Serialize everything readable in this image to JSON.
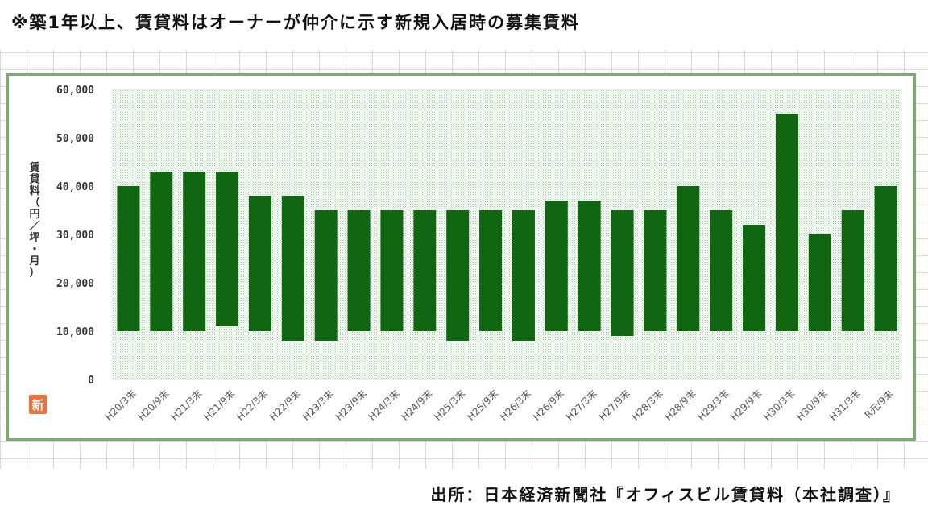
{
  "header": {
    "note": "※築1年以上、賃貸料はオーナーが仲介に示す新規入居時の募集賃料"
  },
  "footer": {
    "source": "出所：日本経済新聞社『オフィスビル賃貸料（本社調査）』"
  },
  "logo": {
    "label": "新"
  },
  "colors": {
    "bar": "#116611",
    "frame": "#7aac72",
    "plot_dots": "#9ac89a"
  },
  "chart_data": {
    "type": "bar",
    "subtype": "floating-range",
    "categories": [
      "H20/3末",
      "H20/9末",
      "H21/3末",
      "H21/9末",
      "H22/3末",
      "H22/9末",
      "H23/3末",
      "H23/9末",
      "H24/3末",
      "H24/9末",
      "H25/3末",
      "H25/9末",
      "H26/3末",
      "H26/9末",
      "H27/3末",
      "H27/9末",
      "H28/3末",
      "H28/9末",
      "H29/3末",
      "H29/9末",
      "H30/3末",
      "H30/9末",
      "H31/3末",
      "R元/9末"
    ],
    "series": [
      {
        "low": [
          10000,
          10000,
          10000,
          11000,
          10000,
          8000,
          8000,
          10000,
          10000,
          10000,
          8000,
          10000,
          8000,
          10000,
          10000,
          9000,
          10000,
          10000,
          10000,
          10000,
          10000,
          10000,
          10000,
          10000
        ],
        "high": [
          40000,
          43000,
          43000,
          43000,
          38000,
          38000,
          35000,
          35000,
          35000,
          35000,
          35000,
          35000,
          35000,
          37000,
          37000,
          35000,
          35000,
          40000,
          35000,
          32000,
          55000,
          30000,
          35000,
          40000
        ]
      }
    ],
    "ylabel": "賃貸料（円／坪・月）",
    "ylim": [
      0,
      60000
    ],
    "yticks": [
      "0",
      "10,000",
      "20,000",
      "30,000",
      "40,000",
      "50,000",
      "60,000"
    ],
    "grid": true,
    "legend": "none"
  }
}
